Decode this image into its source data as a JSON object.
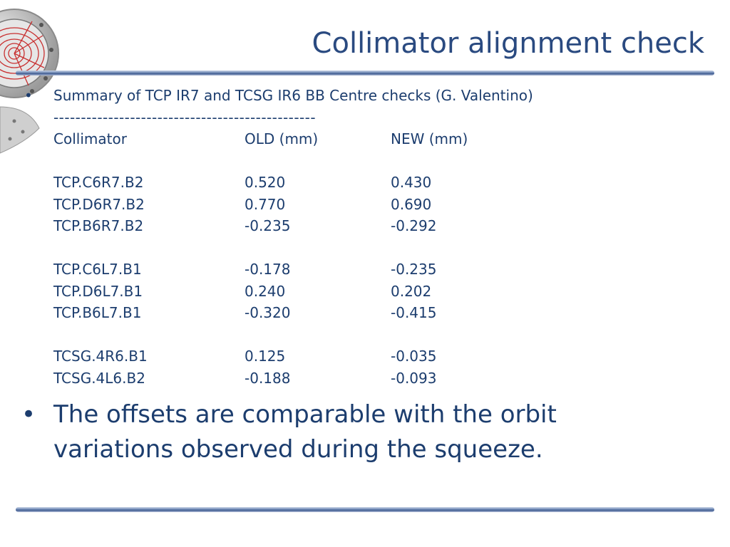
{
  "slide": {
    "title": "Collimator alignment check",
    "summary_line": "Summary of TCP IR7 and TCSG IR6 BB Centre checks (G. Valentino)",
    "divider": "------------------------------------------------",
    "table": {
      "headers": [
        "Collimator",
        "OLD (mm)",
        "NEW (mm)"
      ],
      "groups": [
        [
          [
            "TCP.C6R7.B2",
            "0.520",
            "0.430"
          ],
          [
            "TCP.D6R7.B2",
            "0.770",
            "0.690"
          ],
          [
            "TCP.B6R7.B2",
            "-0.235",
            "-0.292"
          ]
        ],
        [
          [
            "TCP.C6L7.B1",
            "-0.178",
            "-0.235"
          ],
          [
            "TCP.D6L7.B1",
            "0.240",
            "0.202"
          ],
          [
            "TCP.B6L7.B1",
            "-0.320",
            "-0.415"
          ]
        ],
        [
          [
            "TCSG.4R6.B1",
            "0.125",
            "-0.035"
          ],
          [
            "TCSG.4L6.B2",
            "-0.188",
            "-0.093"
          ]
        ]
      ]
    },
    "bullet_text": "The offsets are comparable with the orbit variations observed during the squeeze.",
    "bullet_glyph": "•",
    "small_bullet_glyph": "•"
  },
  "colors": {
    "text": "#1c3d6e",
    "title": "#2a4a80",
    "rule": "#3d5a8f"
  },
  "icons": {
    "logo": "detector-logo-icon"
  }
}
